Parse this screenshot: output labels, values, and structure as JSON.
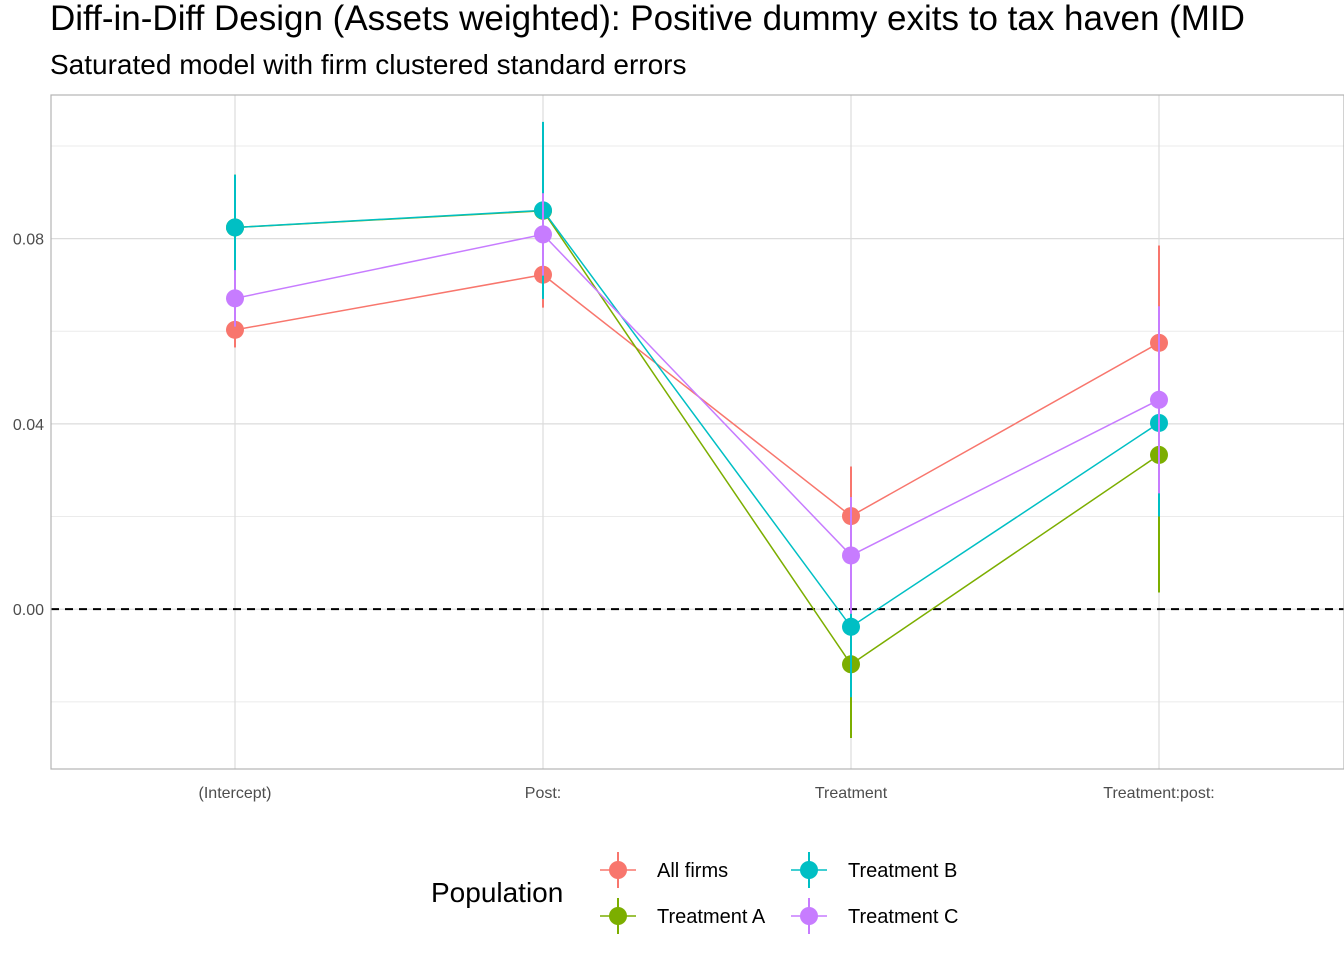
{
  "chart_data": {
    "type": "line",
    "title": "Diff-in-Diff Design (Assets weighted): Positive dummy exits to tax haven (MID",
    "subtitle": "Saturated model with firm clustered standard errors",
    "xlabel": "",
    "ylabel": "",
    "categories": [
      "(Intercept)",
      "Post:",
      "Treatment",
      "Treatment:post:"
    ],
    "ylim": [
      -0.0345,
      0.111
    ],
    "yticks": [
      0.0,
      0.04,
      0.08
    ],
    "ytick_labels": [
      "0.00",
      "0.04",
      "0.08"
    ],
    "grid": true,
    "reference_line": {
      "y": 0.0,
      "style": "dashed"
    },
    "legend": {
      "title": "Population",
      "placement": "bottom"
    },
    "series": [
      {
        "name": "All firms",
        "color": "#F8766D",
        "values": [
          0.0603,
          0.0722,
          0.0201,
          0.0575
        ],
        "lower": [
          0.0565,
          0.0651,
          0.0094,
          0.0365
        ],
        "upper": [
          0.0641,
          0.0793,
          0.0308,
          0.0785
        ]
      },
      {
        "name": "Treatment A",
        "color": "#7CAE00",
        "values": [
          0.0824,
          0.086,
          -0.0119,
          0.0333
        ],
        "lower": [
          0.071,
          0.078,
          -0.0278,
          0.0036
        ],
        "upper": [
          0.0938,
          0.094,
          0.004,
          0.063
        ]
      },
      {
        "name": "Treatment B",
        "color": "#00BFC4",
        "values": [
          0.0824,
          0.0861,
          -0.0038,
          0.0402
        ],
        "lower": [
          0.071,
          0.067,
          -0.019,
          0.02
        ],
        "upper": [
          0.0938,
          0.1052,
          0.0114,
          0.0604
        ]
      },
      {
        "name": "Treatment C",
        "color": "#C77CFF",
        "values": [
          0.0671,
          0.0809,
          0.0116,
          0.0452
        ],
        "lower": [
          0.061,
          0.072,
          -0.001,
          0.025
        ],
        "upper": [
          0.0732,
          0.0898,
          0.0242,
          0.0654
        ]
      }
    ]
  }
}
